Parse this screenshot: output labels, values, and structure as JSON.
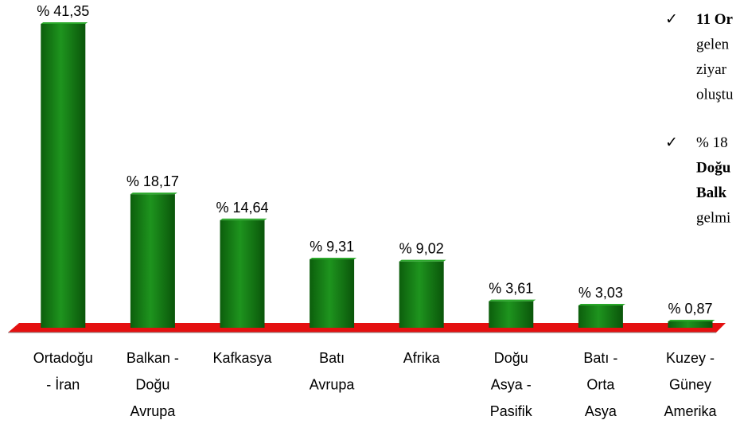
{
  "chart_data": {
    "type": "bar",
    "categories": [
      [
        "Ortadoğu",
        "- İran"
      ],
      [
        "Balkan -",
        "Doğu",
        "Avrupa"
      ],
      [
        "Kafkasya"
      ],
      [
        "Batı",
        "Avrupa"
      ],
      [
        "Afrika"
      ],
      [
        "Doğu",
        "Asya -",
        "Pasifik"
      ],
      [
        "Batı -",
        "Orta",
        "Asya"
      ],
      [
        "Kuzey -",
        "Güney",
        "Amerika"
      ]
    ],
    "values": [
      41.35,
      18.17,
      14.64,
      9.31,
      9.02,
      3.61,
      3.03,
      0.87
    ],
    "value_labels": [
      "% 41,35",
      "% 18,17",
      "% 14,64",
      "% 9,31",
      "% 9,02",
      "% 3,61",
      "% 3,03",
      "% 0,87"
    ],
    "color": "#138013",
    "floor_color": "#e41010",
    "annotations": [
      [
        "11 Or",
        "gelen",
        "ziyar",
        "oluştu"
      ],
      [
        "% 18",
        "Doğu",
        "Balk",
        "gelmi"
      ]
    ]
  }
}
